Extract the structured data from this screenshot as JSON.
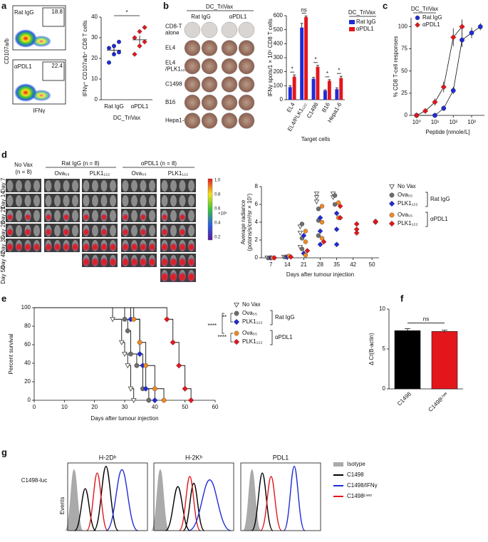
{
  "a": {
    "letter": "a",
    "flow": {
      "plots": [
        {
          "label": "Rat IgG",
          "gate": "18.8"
        },
        {
          "label": "αPDL1",
          "gate": "22.4"
        }
      ],
      "y_label": "CD107a/b",
      "x_label": "IFNγ"
    },
    "chart_data": {
      "type": "scatter",
      "y_label": "IFNγ⁺ CD107a/b⁺ CD8 T cells",
      "x_label": "DC_TriVax",
      "categories": [
        "Rat IgG",
        "αPDL1"
      ],
      "significance": "*",
      "ylim": [
        0,
        40
      ],
      "yticks": [
        0,
        10,
        20,
        30,
        40
      ],
      "colors": [
        "#1f2bd6",
        "#e3161c"
      ],
      "markers": [
        "circle",
        "diamond"
      ],
      "values": [
        [
          18,
          22,
          23,
          25,
          26,
          28
        ],
        [
          22,
          26,
          28,
          30,
          33,
          35
        ]
      ],
      "means": [
        24,
        29
      ],
      "errors": [
        1.5,
        2
      ]
    }
  },
  "b": {
    "letter": "b",
    "plate": {
      "header": "DC_TriVax",
      "columns": [
        "Rat IgG",
        "αPDL1"
      ],
      "rows": [
        [
          "CD8-T",
          "alone"
        ],
        [
          "EL4"
        ],
        [
          "EL4",
          "/PLK1₁₂₂"
        ],
        [
          "C1498"
        ],
        [
          "B16"
        ],
        [
          "Hepa1-6"
        ]
      ]
    },
    "chart_data": {
      "type": "bar",
      "y_label": "IFNγ spots/1 × 10⁵ CD8 T cells",
      "x_label": "Target cells",
      "legend_title": "DC_TriVax",
      "categories": [
        "EL4",
        "EL4/PLK1₁₂₂",
        "C1498",
        "B16",
        "Hepa1-6"
      ],
      "significance": [
        "*",
        "ns",
        "*",
        "*",
        "*"
      ],
      "ylim": [
        0,
        600
      ],
      "yticks": [
        0,
        100,
        200,
        300,
        400,
        500,
        600
      ],
      "series": [
        {
          "name": "Rat IgG",
          "color": "#1f2bd6",
          "values": [
            90,
            515,
            150,
            65,
            75
          ],
          "errors": [
            10,
            30,
            10,
            6,
            10
          ]
        },
        {
          "name": "αPDL1",
          "color": "#e3161c",
          "values": [
            165,
            590,
            235,
            135,
            155
          ],
          "errors": [
            12,
            8,
            10,
            8,
            12
          ]
        }
      ]
    }
  },
  "c": {
    "letter": "c",
    "chart_data": {
      "type": "line",
      "log_x": true,
      "legend_title": "DC_TriVax",
      "x_label": "Peptide [nmole/L]",
      "y_label": "% CD8 T-cell responses",
      "xlim": [
        0.5,
        5000
      ],
      "xticks": [
        {
          "value": 1,
          "label": "10⁰"
        },
        {
          "value": 10,
          "label": "10¹"
        },
        {
          "value": 100,
          "label": "10²"
        },
        {
          "value": 1000,
          "label": "10³"
        }
      ],
      "ylim": [
        0,
        110
      ],
      "yticks": [
        0,
        25,
        50,
        75,
        100
      ],
      "series": [
        {
          "name": "Rat IgG",
          "color": "#1f2bd6",
          "marker": "circle",
          "x": [
            1,
            10,
            30,
            100,
            300,
            1000,
            3000
          ],
          "values": [
            0,
            0,
            8,
            28,
            85,
            93,
            100
          ],
          "errors": [
            0,
            2,
            3,
            4,
            8,
            6,
            4
          ]
        },
        {
          "name": "αPDL1",
          "color": "#e3161c",
          "marker": "diamond",
          "x": [
            1,
            3,
            10,
            30,
            100,
            300
          ],
          "values": [
            0,
            5,
            15,
            32,
            88,
            100
          ],
          "errors": [
            0,
            2,
            4,
            6,
            10,
            8
          ]
        }
      ]
    }
  },
  "d": {
    "letter": "d",
    "images": {
      "group_labels": [
        "No Vax",
        "Rat IgG (n = 8)",
        "αPDL1 (n = 8)"
      ],
      "no_vax_n": "(n = 8)",
      "sub_labels": [
        "Ova₅₅",
        "PLK1₁₂₂",
        "Ova₅₅",
        "PLK1₁₂₂"
      ],
      "days": [
        "Day 7",
        "Day 14",
        "Day 21",
        "Day 28",
        "Day 35",
        "Day 42",
        "Day 50"
      ],
      "colorbar_ticks": [
        "1.0",
        "0.8",
        "0.6",
        "0.4",
        "0.2"
      ],
      "colorbar_unit": "×10⁶"
    },
    "chart_data": {
      "type": "scatter",
      "y_label": [
        "Average radiance",
        "(potons/s/cm²/sr × 10⁷)"
      ],
      "x_label": "Days after tumour injection",
      "xlim": [
        3,
        53
      ],
      "xticks": [
        7,
        14,
        21,
        28,
        35,
        42,
        50
      ],
      "ylim": [
        0,
        8
      ],
      "yticks": [
        0,
        2,
        4,
        6,
        8
      ],
      "legend_groups": [
        "Rat IgG",
        "αPDL1"
      ],
      "series": [
        {
          "name": "No Vax",
          "color": "#555555",
          "marker": "triangle",
          "x": [
            7,
            7,
            14,
            21,
            21,
            21,
            28,
            28,
            28,
            35,
            35
          ],
          "values": [
            0,
            0,
            0.1,
            3.5,
            2.8,
            1.2,
            7.2,
            6.8,
            6.3,
            7.2,
            6.8
          ]
        },
        {
          "name": "Ova₅₅",
          "color": "#6e6e6e",
          "marker": "circle",
          "x": [
            7,
            14,
            21,
            21,
            21,
            28,
            28,
            28,
            35,
            35
          ],
          "values": [
            0,
            0.1,
            3.8,
            2.2,
            1.0,
            5.5,
            4.2,
            2.5,
            7.0,
            6.0
          ]
        },
        {
          "name": "PLK1₁₂₂",
          "color": "#1f2bd6",
          "marker": "diamond",
          "x": [
            7,
            14,
            21,
            21,
            28,
            28,
            28,
            35,
            35,
            35
          ],
          "values": [
            0,
            0.1,
            2.5,
            0.5,
            4.5,
            3.0,
            1.5,
            5.0,
            3.2,
            1.5
          ]
        },
        {
          "name": "Ova₅₅",
          "color": "#f08a24",
          "marker": "circle",
          "x": [
            7,
            14,
            21,
            21,
            21,
            28,
            28,
            28,
            35,
            35
          ],
          "values": [
            0,
            0.2,
            3.0,
            1.8,
            0.3,
            5.8,
            4.0,
            2.2,
            6.2,
            4.5
          ]
        },
        {
          "name": "PLK1₁₂₂",
          "color": "#e3161c",
          "marker": "diamond",
          "x": [
            7,
            14,
            21,
            28,
            35,
            35,
            42,
            42,
            42,
            50,
            50
          ],
          "values": [
            0,
            0.1,
            0.8,
            1.8,
            4.5,
            5.8,
            3.8,
            3.2,
            2.8,
            4.0,
            4.1
          ]
        }
      ]
    }
  },
  "e": {
    "letter": "e",
    "chart_data": {
      "type": "line",
      "step": true,
      "y_label": "Percent survival",
      "x_label": "Days after tumour injection",
      "xlim": [
        0,
        60
      ],
      "xticks": [
        0,
        10,
        20,
        30,
        40,
        50,
        60
      ],
      "ylim": [
        0,
        100
      ],
      "yticks": [
        0,
        20,
        40,
        60,
        80,
        100
      ],
      "legend_groups": [
        "Rat IgG",
        "αPDL1"
      ],
      "significance": [
        "**",
        "****",
        "****"
      ],
      "series": [
        {
          "name": "No Vax",
          "color": "#555555",
          "marker": "triangle",
          "x": [
            0,
            26,
            29,
            30,
            31,
            32,
            33
          ],
          "values": [
            100,
            87.5,
            62.5,
            50,
            37.5,
            12.5,
            0
          ]
        },
        {
          "name": "Ova₅₅",
          "color": "#6e6e6e",
          "marker": "circle",
          "x": [
            0,
            30,
            31,
            32,
            34,
            36,
            38
          ],
          "values": [
            100,
            87.5,
            75,
            50,
            37.5,
            12.5,
            0
          ]
        },
        {
          "name": "PLK1₁₂₂",
          "color": "#1f2bd6",
          "marker": "diamond",
          "x": [
            0,
            32,
            35,
            36,
            37,
            40
          ],
          "values": [
            100,
            87.5,
            50,
            37.5,
            12.5,
            0
          ]
        },
        {
          "name": "Ova₅₅",
          "color": "#f08a24",
          "marker": "circle",
          "x": [
            0,
            33,
            35,
            37,
            40,
            43
          ],
          "values": [
            100,
            87.5,
            62.5,
            37.5,
            12.5,
            0
          ]
        },
        {
          "name": "PLK1₁₂₂",
          "color": "#e3161c",
          "marker": "diamond",
          "x": [
            0,
            44,
            46,
            48,
            50,
            52
          ],
          "values": [
            100,
            87.5,
            62.5,
            37.5,
            12.5,
            0
          ]
        }
      ]
    }
  },
  "f": {
    "letter": "f",
    "chart_data": {
      "type": "bar",
      "y_label": "Δ Ct(B-actin)",
      "categories": [
        "C1498",
        "C1498ᴸⁱᵛᵉʳ"
      ],
      "colors": [
        "#000000",
        "#e3161c"
      ],
      "values": [
        7.3,
        7.2
      ],
      "errors": [
        0.25,
        0.15
      ],
      "significance": "ns",
      "ylim": [
        0,
        10
      ],
      "yticks": [
        0,
        5,
        10
      ]
    }
  },
  "g": {
    "letter": "g",
    "row_label": "C1498-luc",
    "y_label": "Events",
    "panels": [
      "H-2Dᵇ",
      "H-2Kᵇ",
      "PDL1"
    ],
    "legend": [
      {
        "name": "Isotype",
        "color": "#aaaaaa"
      },
      {
        "name": "C1498",
        "color": "#000000"
      },
      {
        "name": "C1498/IFNγ",
        "color": "#1f2bd6"
      },
      {
        "name": "C1498ᴸⁱᵛᵉʳ",
        "color": "#e3161c"
      }
    ]
  }
}
